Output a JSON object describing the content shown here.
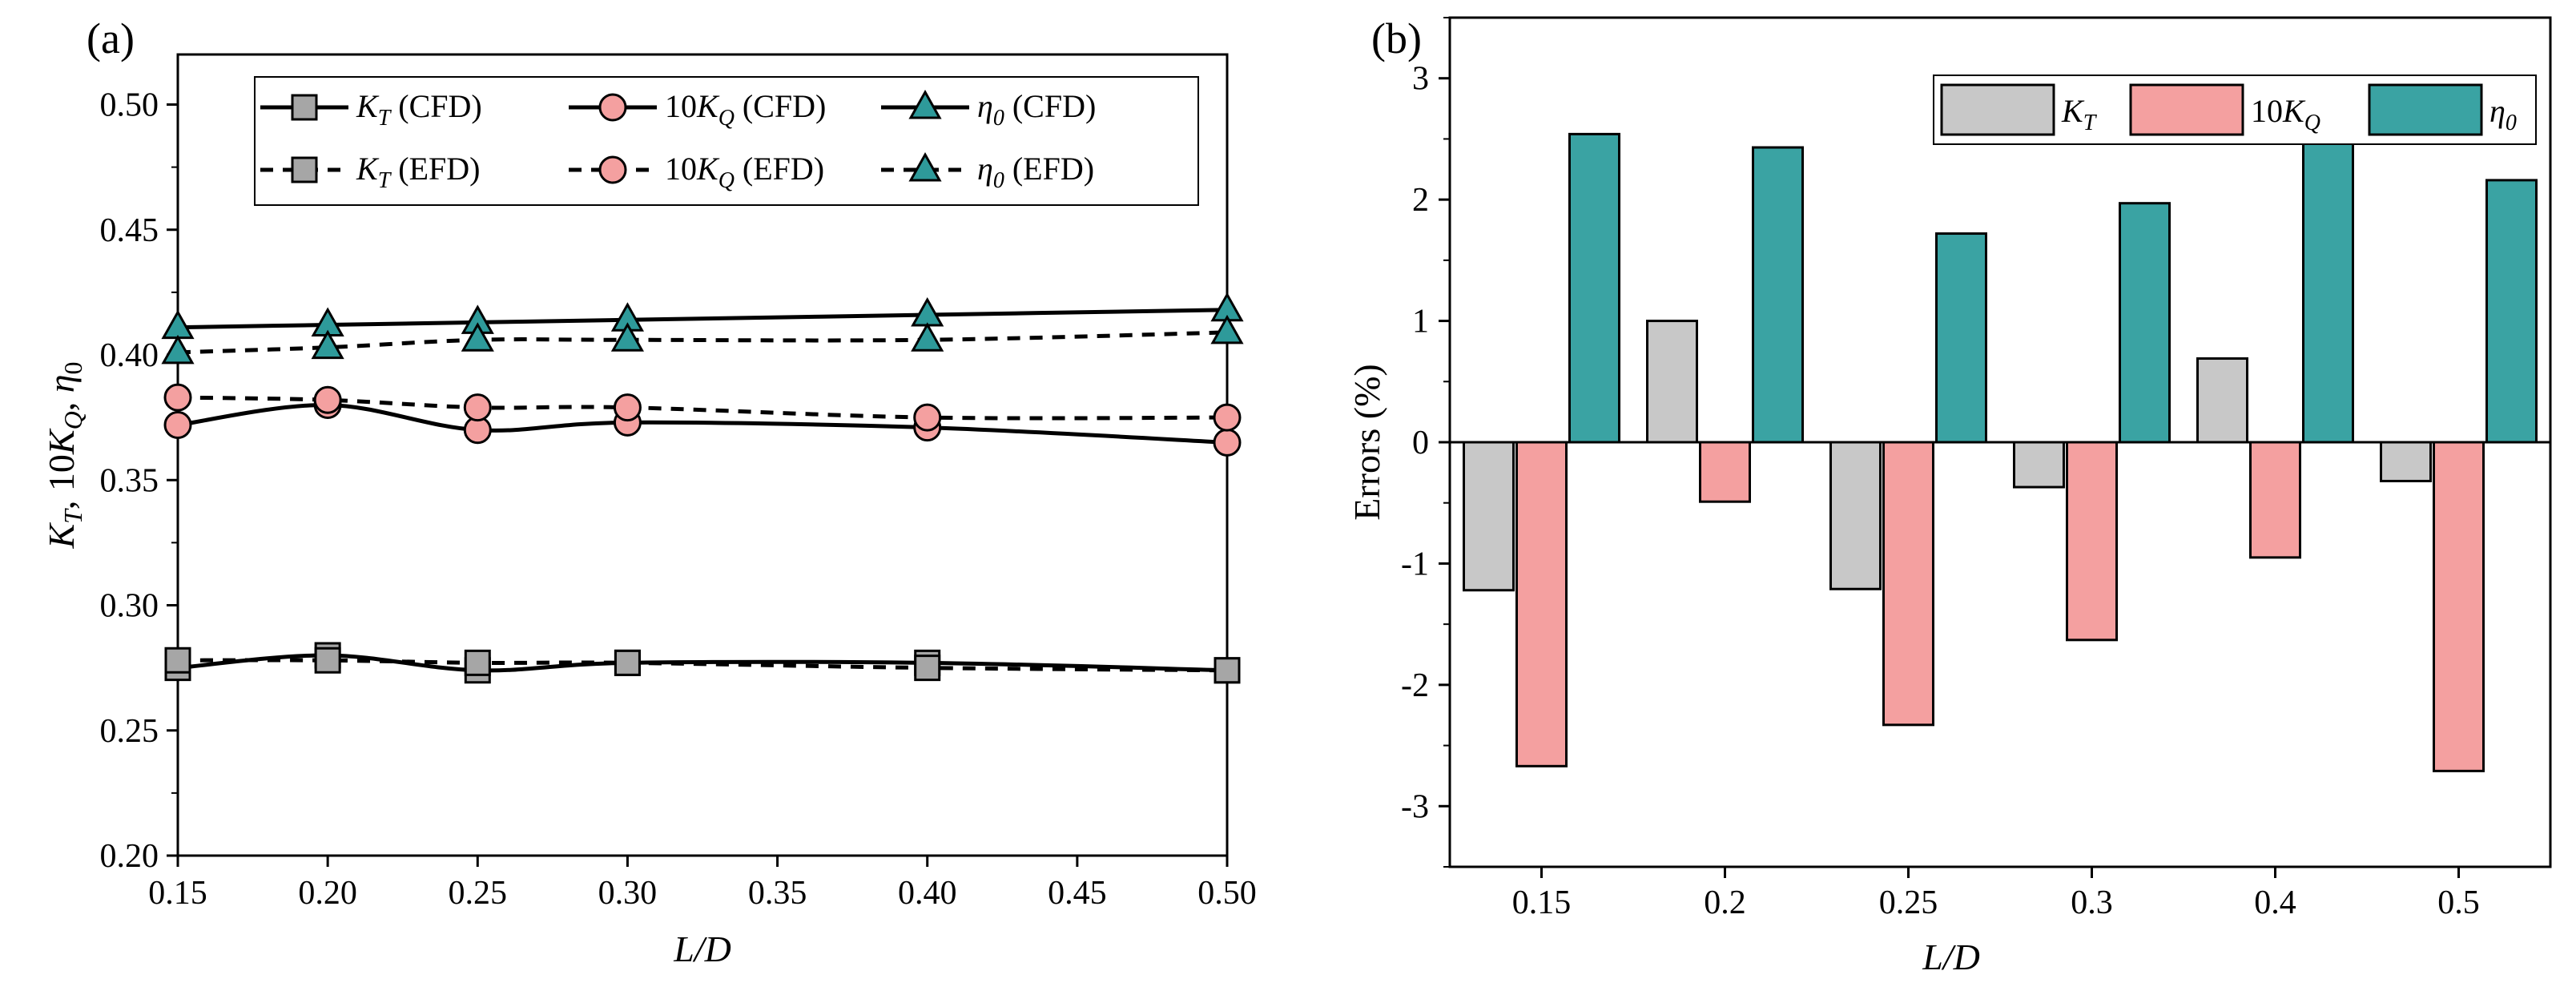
{
  "chart_data": [
    {
      "panel_label": "(a)",
      "type": "line",
      "xlabel": "L/D",
      "ylabel_parts": [
        "K",
        "T",
        ", 10K",
        "Q",
        ", η",
        "0"
      ],
      "xlim": [
        0.15,
        0.5
      ],
      "ylim": [
        0.2,
        0.52
      ],
      "xticks": [
        0.15,
        0.2,
        0.25,
        0.3,
        0.35,
        0.4,
        0.45,
        0.5
      ],
      "xtick_labels": [
        "0.15",
        "0.20",
        "0.25",
        "0.30",
        "0.35",
        "0.40",
        "0.45",
        "0.50"
      ],
      "yticks": [
        0.2,
        0.25,
        0.3,
        0.35,
        0.4,
        0.45,
        0.5
      ],
      "ytick_labels": [
        "0.20",
        "0.25",
        "0.30",
        "0.35",
        "0.40",
        "0.45",
        "0.50"
      ],
      "x": [
        0.15,
        0.2,
        0.25,
        0.3,
        0.4,
        0.5
      ],
      "series": [
        {
          "key": "kt_cfd",
          "legend": [
            "K",
            "T",
            " (CFD)"
          ],
          "marker": "square",
          "line": "solid",
          "color": "#a6a6a6",
          "values": [
            0.275,
            0.28,
            0.274,
            0.277,
            0.277,
            0.274
          ]
        },
        {
          "key": "kq_cfd",
          "legend": [
            "10K",
            "Q",
            " (CFD)"
          ],
          "marker": "circle",
          "line": "solid",
          "color": "#f4a0a0",
          "values": [
            0.372,
            0.38,
            0.37,
            0.373,
            0.371,
            0.365
          ]
        },
        {
          "key": "eta_cfd",
          "legend": [
            "η",
            "0",
            " (CFD)"
          ],
          "marker": "triangle",
          "line": "solid",
          "color": "#2e9a9a",
          "values": [
            0.411,
            0.412,
            0.413,
            0.414,
            0.416,
            0.418
          ]
        },
        {
          "key": "kt_efd",
          "legend": [
            "K",
            "T",
            " (EFD)"
          ],
          "marker": "square",
          "line": "dashed",
          "color": "#a6a6a6",
          "values": [
            0.278,
            0.278,
            0.277,
            0.277,
            0.275,
            0.274
          ]
        },
        {
          "key": "kq_efd",
          "legend": [
            "10K",
            "Q",
            " (EFD)"
          ],
          "marker": "circle",
          "line": "dashed",
          "color": "#f4a0a0",
          "values": [
            0.383,
            0.382,
            0.379,
            0.379,
            0.375,
            0.375
          ]
        },
        {
          "key": "eta_efd",
          "legend": [
            "η",
            "0",
            " (EFD)"
          ],
          "marker": "triangle",
          "line": "dashed",
          "color": "#2e9a9a",
          "values": [
            0.401,
            0.403,
            0.406,
            0.406,
            0.406,
            0.409
          ]
        }
      ],
      "legend_position": "top"
    },
    {
      "panel_label": "(b)",
      "type": "bar",
      "xlabel": "L/D",
      "ylabel": "Errors (%)",
      "categories": [
        "0.15",
        "0.2",
        "0.25",
        "0.3",
        "0.4",
        "0.5"
      ],
      "ylim": [
        -3.5,
        3.5
      ],
      "yticks": [
        -3,
        -2,
        -1,
        0,
        1,
        2,
        3
      ],
      "ytick_labels": [
        "-3",
        "-2",
        "-1",
        "0",
        "1",
        "2",
        "3"
      ],
      "series": [
        {
          "key": "kt",
          "legend": [
            "K",
            "T"
          ],
          "color": "#c8c8c8",
          "values": [
            -1.22,
            1.0,
            -1.21,
            -0.37,
            0.69,
            -0.32
          ]
        },
        {
          "key": "kq",
          "legend": [
            "10K",
            "Q"
          ],
          "color": "#f4a0a0",
          "values": [
            -2.67,
            -0.49,
            -2.33,
            -1.63,
            -0.95,
            -2.71
          ]
        },
        {
          "key": "eta",
          "legend": [
            "η",
            "0"
          ],
          "color": "#3aa3a3",
          "values": [
            2.54,
            2.43,
            1.72,
            1.97,
            2.47,
            2.16
          ]
        }
      ],
      "legend_position": "top-right"
    }
  ]
}
